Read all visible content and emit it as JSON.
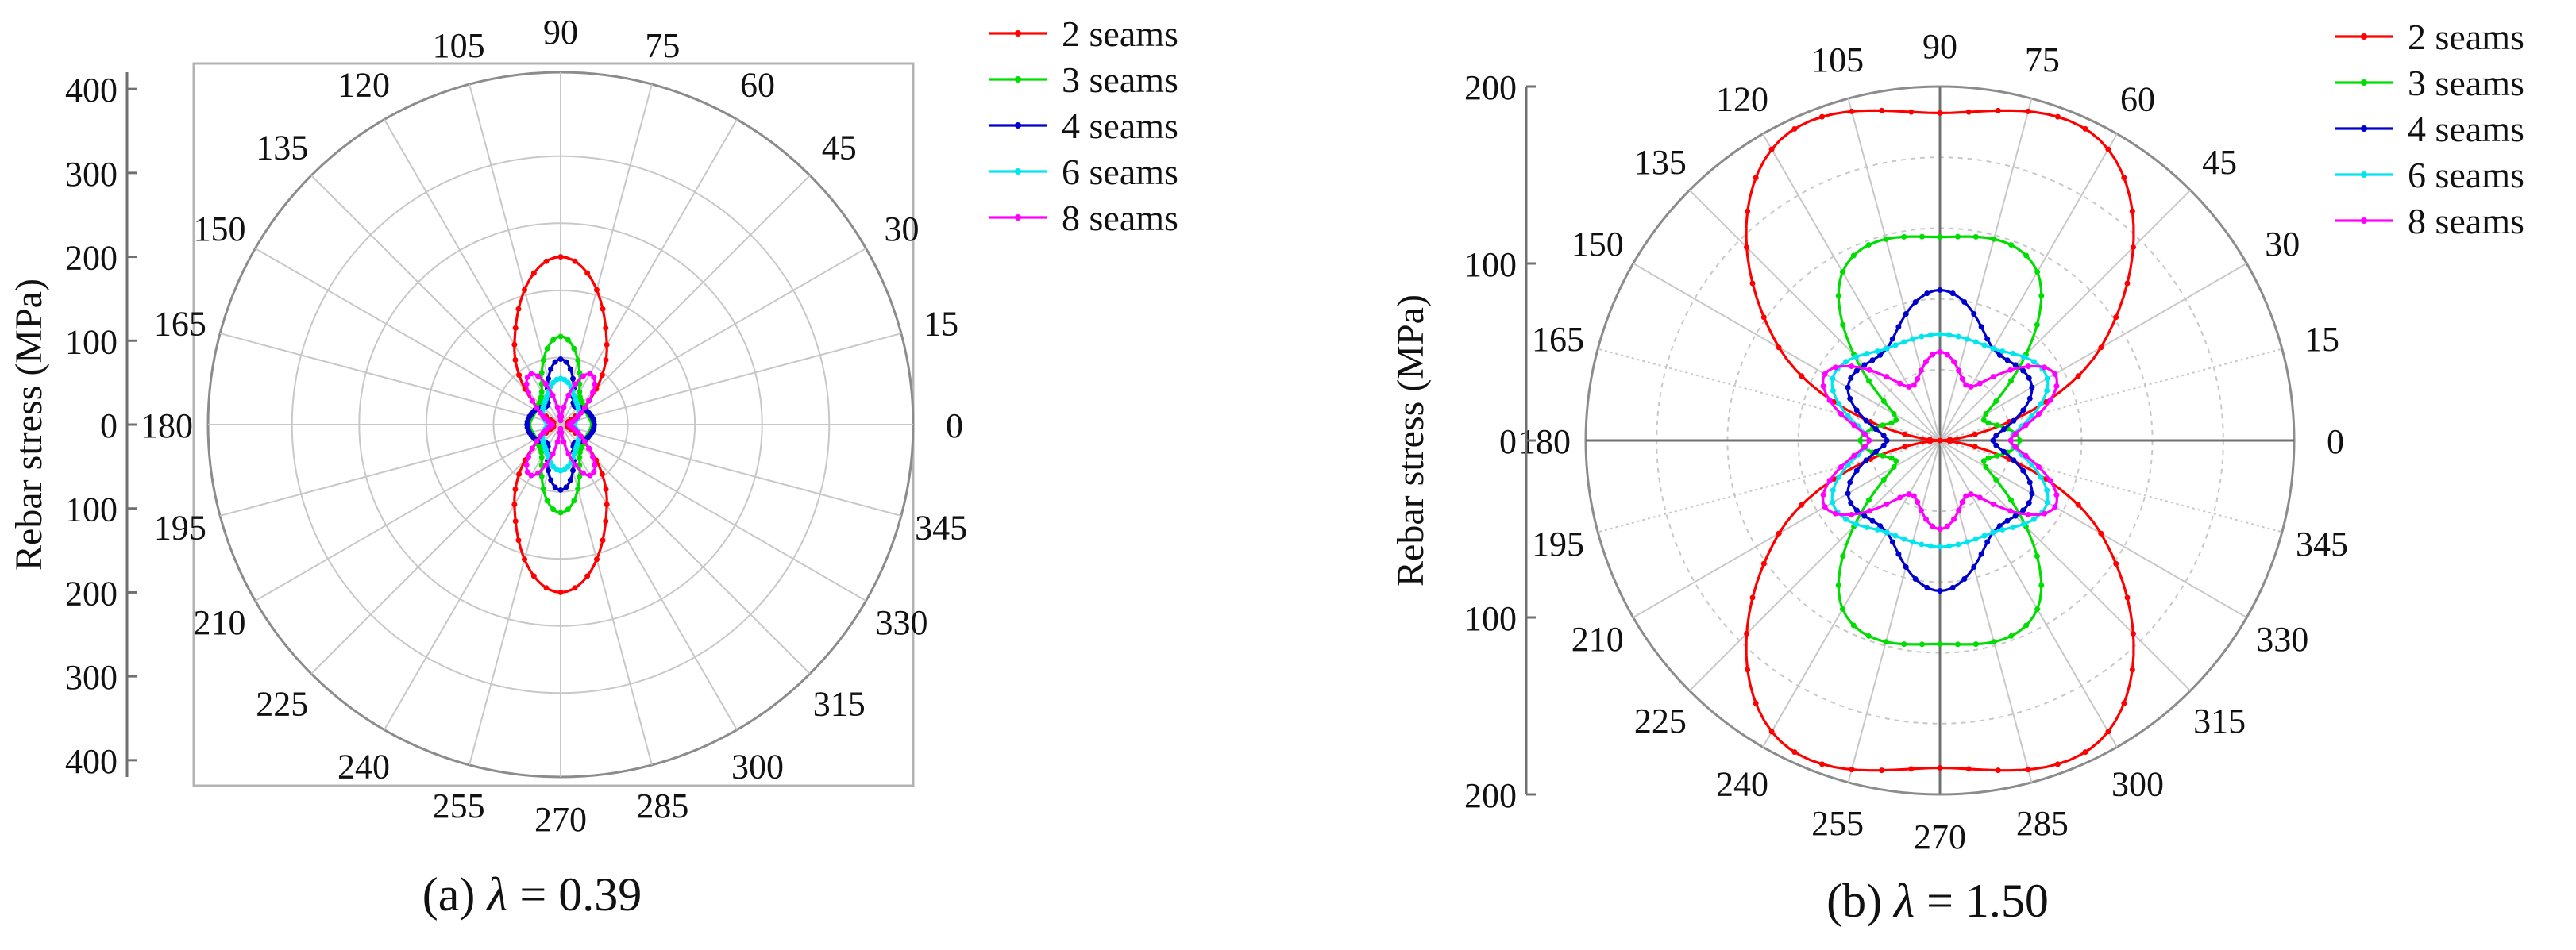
{
  "figure": {
    "panels": [
      {
        "caption_prefix": "(a) ",
        "caption_symbol": "λ",
        "caption_value": " = 0.39",
        "ylabel": "Rebar stress (MPa)"
      },
      {
        "caption_prefix": "(b) ",
        "caption_symbol": "λ",
        "caption_value": " = 1.50",
        "ylabel": "Rebar stress (MPa)"
      }
    ]
  },
  "chart_data": [
    {
      "type": "polar-line",
      "title": "",
      "caption": "(a) λ = 0.39",
      "ylabel": "Rebar stress (MPa)",
      "theta_unit": "degrees",
      "theta_ticks": [
        0,
        15,
        30,
        45,
        60,
        75,
        90,
        105,
        120,
        135,
        150,
        165,
        180,
        195,
        210,
        225,
        240,
        255,
        270,
        285,
        300,
        315,
        330,
        345
      ],
      "r_max": 420,
      "r_gridlines": [
        80,
        160,
        240,
        320,
        420
      ],
      "y_tick_labels": [
        "400",
        "300",
        "200",
        "100",
        "0",
        "100",
        "200",
        "300",
        "400"
      ],
      "y_tick_values": [
        400,
        300,
        200,
        100,
        0,
        -100,
        -200,
        -300,
        -400
      ],
      "y_range": [
        -420,
        420
      ],
      "grid": true,
      "legend_position": "top-right",
      "series": [
        {
          "name": "2 seams",
          "color": "#ff0000",
          "x": [
            0,
            30,
            60,
            90,
            120,
            150,
            180
          ],
          "y": [
            10,
            20,
            110,
            200,
            110,
            20,
            10
          ]
        },
        {
          "name": "3 seams",
          "color": "#00dd00",
          "x": [
            0,
            30,
            60,
            90,
            120,
            150,
            180
          ],
          "y": [
            38,
            35,
            45,
            105,
            45,
            35,
            38
          ]
        },
        {
          "name": "4 seams",
          "color": "#0000cc",
          "x": [
            0,
            30,
            60,
            90,
            120,
            150,
            180
          ],
          "y": [
            40,
            35,
            30,
            78,
            30,
            35,
            40
          ]
        },
        {
          "name": "6 seams",
          "color": "#00e5ee",
          "x": [
            0,
            30,
            60,
            90,
            120,
            150,
            180
          ],
          "y": [
            15,
            25,
            35,
            55,
            35,
            25,
            15
          ]
        },
        {
          "name": "8 seams",
          "color": "#ff00ff",
          "x": [
            0,
            30,
            60,
            90,
            120,
            150,
            180
          ],
          "y": [
            10,
            28,
            70,
            5,
            70,
            28,
            10
          ]
        }
      ]
    },
    {
      "type": "polar-line",
      "title": "",
      "caption": "(b) λ = 1.50",
      "ylabel": "Rebar stress (MPa)",
      "theta_unit": "degrees",
      "theta_ticks": [
        0,
        15,
        30,
        45,
        60,
        75,
        90,
        105,
        120,
        135,
        150,
        165,
        180,
        195,
        210,
        225,
        240,
        255,
        270,
        285,
        300,
        315,
        330,
        345
      ],
      "r_max": 200,
      "r_gridlines": [
        40,
        80,
        120,
        160,
        200
      ],
      "y_tick_labels": [
        "200",
        "100",
        "0",
        "100",
        "200"
      ],
      "y_tick_values": [
        200,
        100,
        0,
        -100,
        -200
      ],
      "y_range": [
        -200,
        200
      ],
      "grid": true,
      "legend_position": "top-right",
      "series": [
        {
          "name": "2 seams",
          "color": "#ff0000",
          "x": [
            0,
            30,
            60,
            90,
            120,
            150,
            180
          ],
          "y": [
            0,
            105,
            190,
            185,
            190,
            105,
            0
          ]
        },
        {
          "name": "3 seams",
          "color": "#00dd00",
          "x": [
            0,
            30,
            60,
            90,
            120,
            150,
            180
          ],
          "y": [
            45,
            30,
            110,
            115,
            110,
            30,
            45
          ]
        },
        {
          "name": "4 seams",
          "color": "#0000cc",
          "x": [
            0,
            30,
            60,
            90,
            120,
            150,
            180
          ],
          "y": [
            30,
            60,
            60,
            85,
            60,
            60,
            30
          ]
        },
        {
          "name": "6 seams",
          "color": "#00e5ee",
          "x": [
            0,
            30,
            60,
            90,
            120,
            150,
            180
          ],
          "y": [
            40,
            70,
            60,
            60,
            60,
            70,
            40
          ]
        },
        {
          "name": "8 seams",
          "color": "#ff00ff",
          "x": [
            0,
            30,
            60,
            90,
            120,
            150,
            180
          ],
          "y": [
            40,
            75,
            35,
            50,
            35,
            75,
            40
          ]
        }
      ]
    }
  ]
}
